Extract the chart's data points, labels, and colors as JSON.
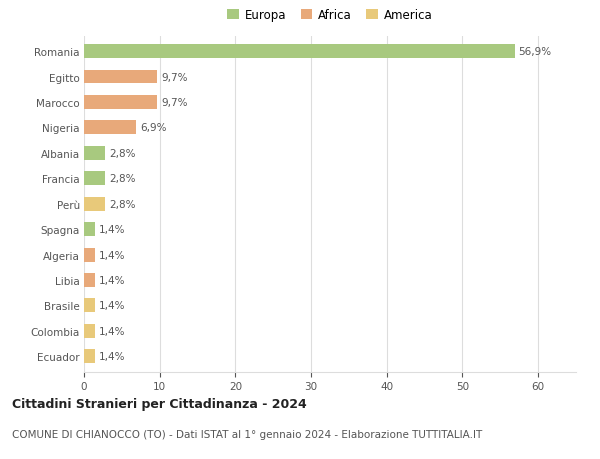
{
  "countries": [
    "Romania",
    "Egitto",
    "Marocco",
    "Nigeria",
    "Albania",
    "Francia",
    "Perù",
    "Spagna",
    "Algeria",
    "Libia",
    "Brasile",
    "Colombia",
    "Ecuador"
  ],
  "values": [
    56.9,
    9.7,
    9.7,
    6.9,
    2.8,
    2.8,
    2.8,
    1.4,
    1.4,
    1.4,
    1.4,
    1.4,
    1.4
  ],
  "labels": [
    "56,9%",
    "9,7%",
    "9,7%",
    "6,9%",
    "2,8%",
    "2,8%",
    "2,8%",
    "1,4%",
    "1,4%",
    "1,4%",
    "1,4%",
    "1,4%",
    "1,4%"
  ],
  "continents": [
    "Europa",
    "Africa",
    "Africa",
    "Africa",
    "Europa",
    "Europa",
    "America",
    "Europa",
    "Africa",
    "Africa",
    "America",
    "America",
    "America"
  ],
  "colors": {
    "Europa": "#a8c97f",
    "Africa": "#e8a97a",
    "America": "#e8c97a"
  },
  "legend_labels": [
    "Europa",
    "Africa",
    "America"
  ],
  "legend_colors": [
    "#a8c97f",
    "#e8a97a",
    "#e8c97a"
  ],
  "title": "Cittadini Stranieri per Cittadinanza - 2024",
  "subtitle": "COMUNE DI CHIANOCCO (TO) - Dati ISTAT al 1° gennaio 2024 - Elaborazione TUTTITALIA.IT",
  "xlim": [
    0,
    65
  ],
  "xticks": [
    0,
    10,
    20,
    30,
    40,
    50,
    60
  ],
  "background_color": "#ffffff",
  "bar_height": 0.55,
  "grid_color": "#dddddd",
  "label_fontsize": 7.5,
  "ytick_fontsize": 7.5,
  "xtick_fontsize": 7.5,
  "legend_fontsize": 8.5,
  "title_fontsize": 9,
  "subtitle_fontsize": 7.5
}
